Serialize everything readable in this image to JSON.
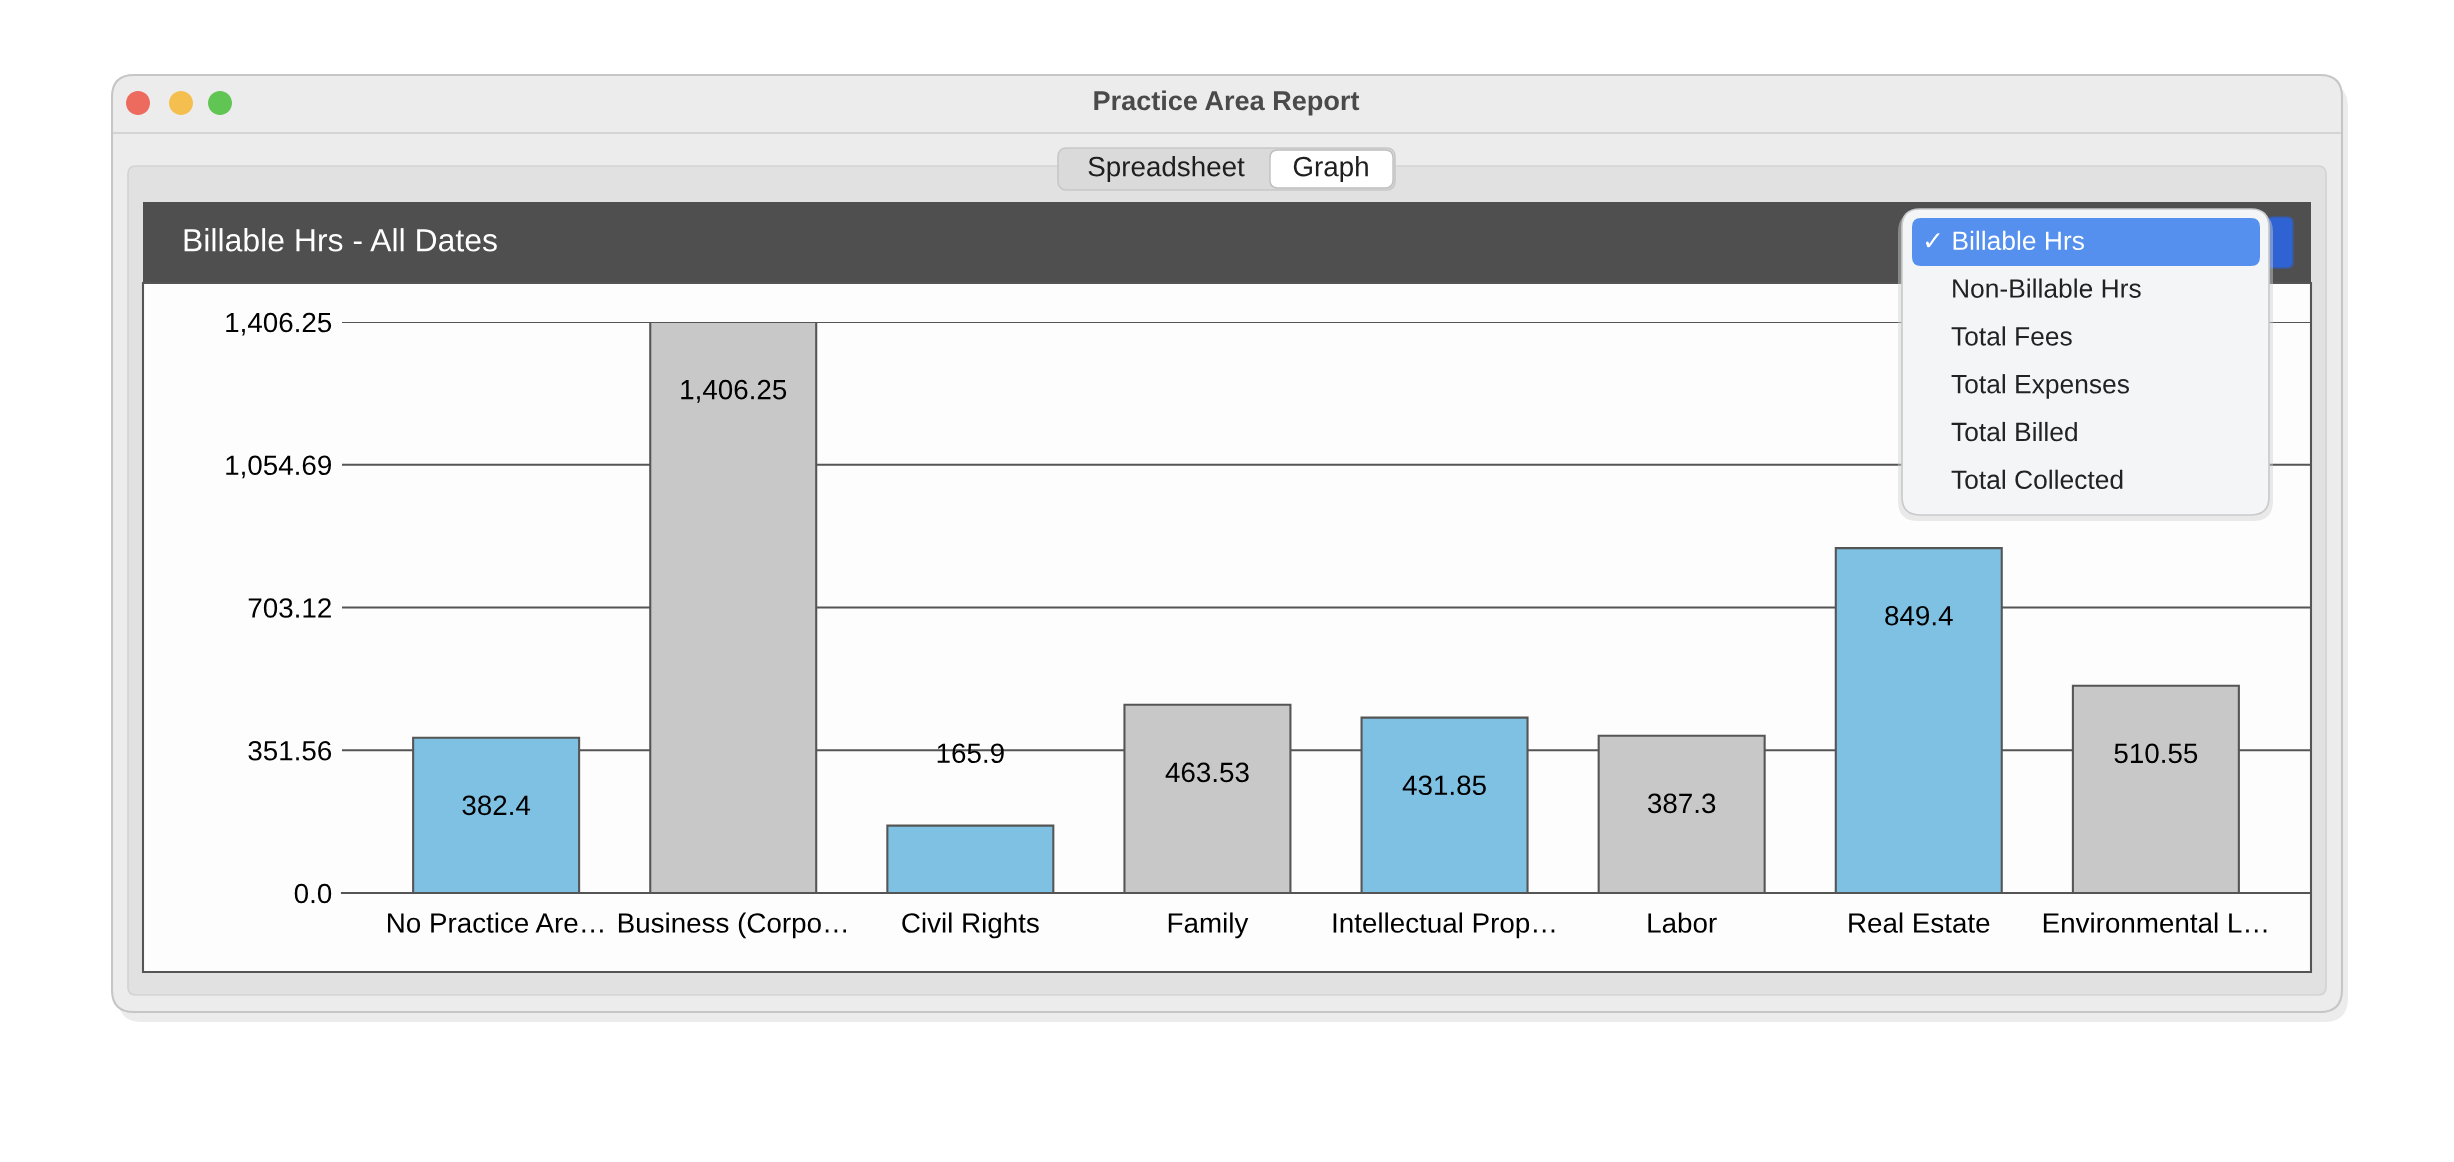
{
  "chart_data": {
    "type": "bar",
    "title": "Billable Hrs - All Dates",
    "annotations": [
      "Practice Area Report",
      "Spreadsheet",
      "Graph",
      "✓ Billable Hrs",
      "Non-Billable Hrs",
      "Total Fees",
      "Total Expenses",
      "Total Billed",
      "Total Collected"
    ],
    "categories": [
      "No Practice Are…",
      "Business (Corpo…",
      "Civil Rights",
      "Family",
      "Intellectual Prop…",
      "Labor",
      "Real Estate",
      "Environmental L…"
    ],
    "values": [
      382.4,
      1406.25,
      165.9,
      463.53,
      431.85,
      387.3,
      849.4,
      510.55
    ],
    "colors": [
      "#7fc1e3",
      "#c8c8c8",
      "#7fc1e3",
      "#c8c8c8",
      "#7fc1e3",
      "#c8c8c8",
      "#7fc1e3",
      "#c8c8c8"
    ],
    "value_labels": [
      "382.4",
      "1,406.25",
      "165.9",
      "463.53",
      "431.85",
      "387.3",
      "849.4",
      "510.55"
    ],
    "ylim": [
      0,
      1406.25
    ],
    "yticks": [
      {
        "value": 0,
        "label": "0.0"
      },
      351.56,
      703.12,
      {
        "value": 1054.69,
        "label": "1,054.69"
      },
      {
        "value": 1406.25,
        "label": "1,406.25"
      }
    ],
    "grid": "y"
  }
}
